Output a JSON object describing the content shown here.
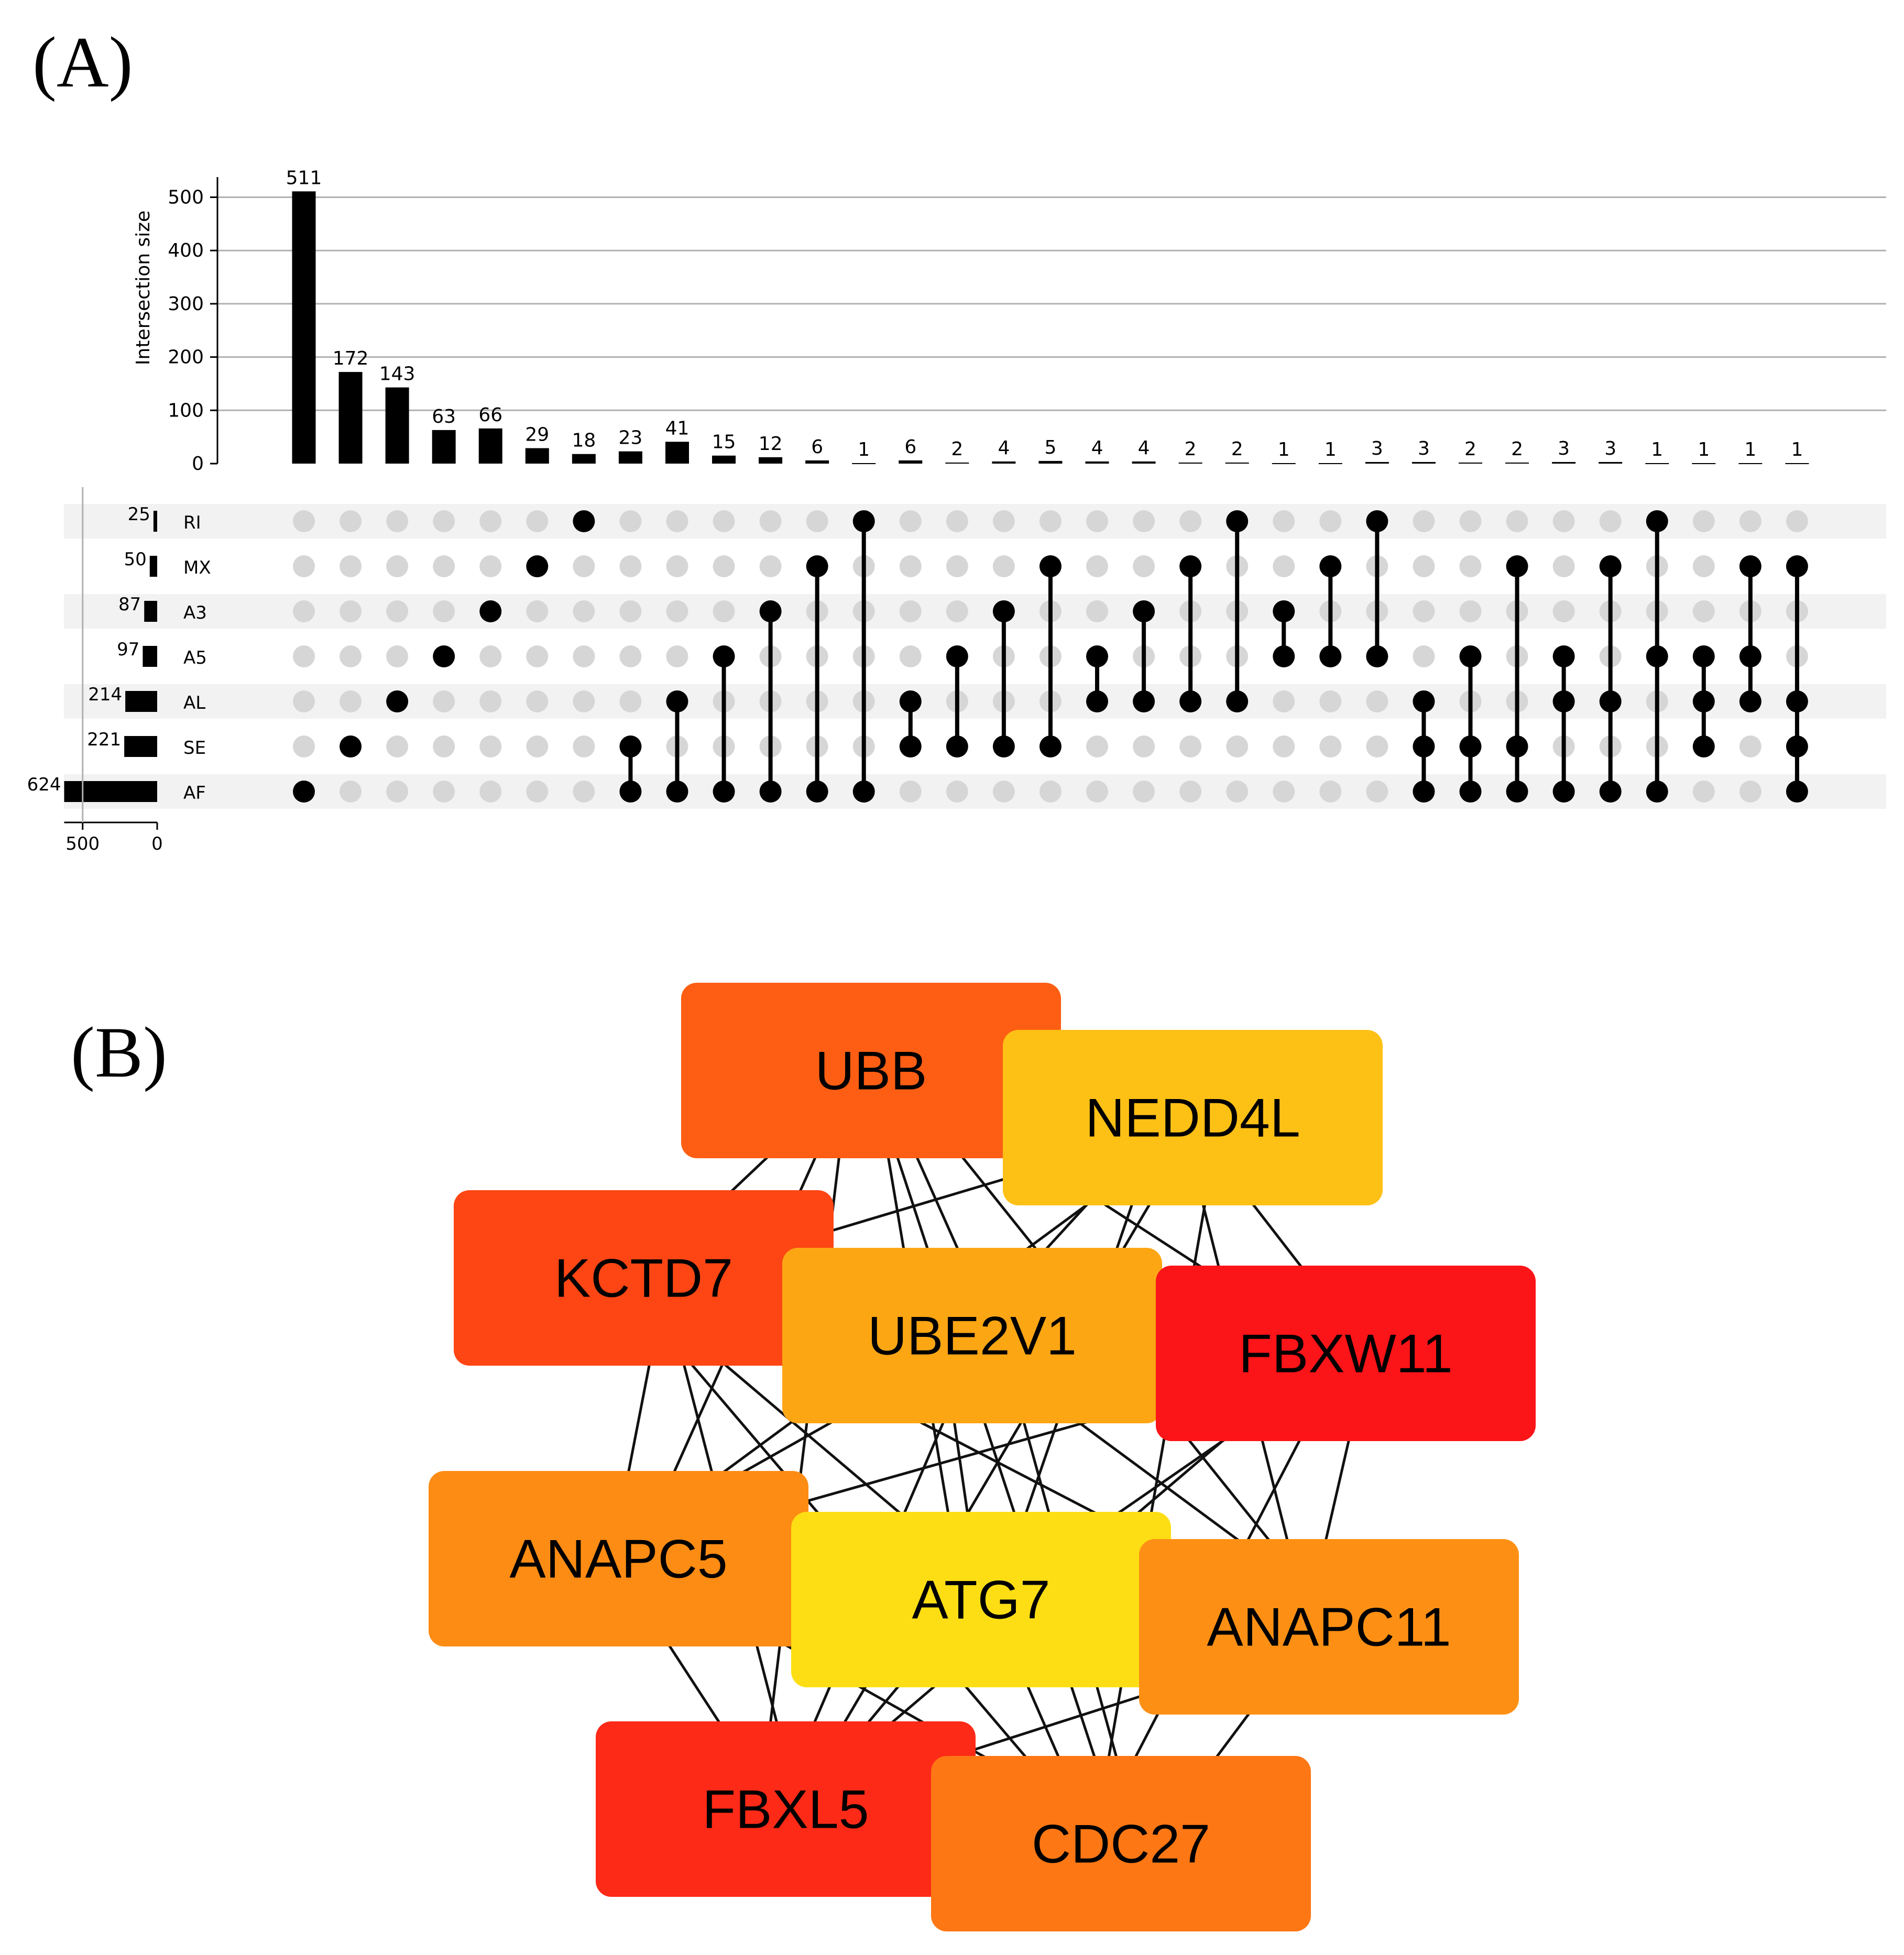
{
  "panels": {
    "a_label": "(A)",
    "b_label": "(B)"
  },
  "chart_data": [
    {
      "type": "upset",
      "ylabel": "Intersection size",
      "yticks": [
        0,
        100,
        200,
        300,
        400,
        500
      ],
      "ylim": [
        0,
        530
      ],
      "set_size_ticks": [
        500,
        0
      ],
      "set_size_lim": [
        624,
        0
      ],
      "sets": [
        {
          "name": "RI",
          "size": 25
        },
        {
          "name": "MX",
          "size": 50
        },
        {
          "name": "A3",
          "size": 87
        },
        {
          "name": "A5",
          "size": 97
        },
        {
          "name": "AL",
          "size": 214
        },
        {
          "name": "SE",
          "size": 221
        },
        {
          "name": "AF",
          "size": 624
        }
      ],
      "intersections": [
        {
          "sets": [
            "AF"
          ],
          "size": 511
        },
        {
          "sets": [
            "SE"
          ],
          "size": 172
        },
        {
          "sets": [
            "AL"
          ],
          "size": 143
        },
        {
          "sets": [
            "A5"
          ],
          "size": 63
        },
        {
          "sets": [
            "A3"
          ],
          "size": 66
        },
        {
          "sets": [
            "MX"
          ],
          "size": 29
        },
        {
          "sets": [
            "RI"
          ],
          "size": 18
        },
        {
          "sets": [
            "SE",
            "AF"
          ],
          "size": 23
        },
        {
          "sets": [
            "AL",
            "AF"
          ],
          "size": 41
        },
        {
          "sets": [
            "A5",
            "AF"
          ],
          "size": 15
        },
        {
          "sets": [
            "A3",
            "AF"
          ],
          "size": 12
        },
        {
          "sets": [
            "MX",
            "AF"
          ],
          "size": 6
        },
        {
          "sets": [
            "RI",
            "AF"
          ],
          "size": 1
        },
        {
          "sets": [
            "AL",
            "SE"
          ],
          "size": 6
        },
        {
          "sets": [
            "A5",
            "SE"
          ],
          "size": 2
        },
        {
          "sets": [
            "A3",
            "SE"
          ],
          "size": 4
        },
        {
          "sets": [
            "MX",
            "SE"
          ],
          "size": 5
        },
        {
          "sets": [
            "A5",
            "AL"
          ],
          "size": 4
        },
        {
          "sets": [
            "A3",
            "AL"
          ],
          "size": 4
        },
        {
          "sets": [
            "MX",
            "AL"
          ],
          "size": 2
        },
        {
          "sets": [
            "RI",
            "AL"
          ],
          "size": 2
        },
        {
          "sets": [
            "A3",
            "A5"
          ],
          "size": 1
        },
        {
          "sets": [
            "MX",
            "A5"
          ],
          "size": 1
        },
        {
          "sets": [
            "RI",
            "A5"
          ],
          "size": 3
        },
        {
          "sets": [
            "AL",
            "SE",
            "AF"
          ],
          "size": 3
        },
        {
          "sets": [
            "A5",
            "SE",
            "AF"
          ],
          "size": 2
        },
        {
          "sets": [
            "MX",
            "SE",
            "AF"
          ],
          "size": 2
        },
        {
          "sets": [
            "A5",
            "AL",
            "AF"
          ],
          "size": 3
        },
        {
          "sets": [
            "MX",
            "AL",
            "AF"
          ],
          "size": 3
        },
        {
          "sets": [
            "RI",
            "A5",
            "AF"
          ],
          "size": 1
        },
        {
          "sets": [
            "A5",
            "AL",
            "SE"
          ],
          "size": 1
        },
        {
          "sets": [
            "MX",
            "A5",
            "AL"
          ],
          "size": 1
        },
        {
          "sets": [
            "MX",
            "AL",
            "SE",
            "AF"
          ],
          "size": 1
        }
      ]
    },
    {
      "type": "network",
      "nodes": [
        {
          "id": "UBB",
          "label": "UBB",
          "color": "#FD5E13"
        },
        {
          "id": "NEDD4L",
          "label": "NEDD4L",
          "color": "#FDC015"
        },
        {
          "id": "KCTD7",
          "label": "KCTD7",
          "color": "#FD4614"
        },
        {
          "id": "UBE2V1",
          "label": "UBE2V1",
          "color": "#FDA614"
        },
        {
          "id": "FBXW11",
          "label": "FBXW11",
          "color": "#FB1418"
        },
        {
          "id": "ANAPC5",
          "label": "ANAPC5",
          "color": "#FD8C14"
        },
        {
          "id": "ATG7",
          "label": "ATG7",
          "color": "#FDDE14"
        },
        {
          "id": "ANAPC11",
          "label": "ANAPC11",
          "color": "#FD9014"
        },
        {
          "id": "FBXL5",
          "label": "FBXL5",
          "color": "#FD2A17"
        },
        {
          "id": "CDC27",
          "label": "CDC27",
          "color": "#FD7714"
        }
      ],
      "edges": [
        [
          "UBB",
          "NEDD4L"
        ],
        [
          "UBB",
          "KCTD7"
        ],
        [
          "UBB",
          "UBE2V1"
        ],
        [
          "UBB",
          "FBXW11"
        ],
        [
          "UBB",
          "ANAPC5"
        ],
        [
          "UBB",
          "ATG7"
        ],
        [
          "UBB",
          "ANAPC11"
        ],
        [
          "UBB",
          "FBXL5"
        ],
        [
          "UBB",
          "CDC27"
        ],
        [
          "NEDD4L",
          "KCTD7"
        ],
        [
          "NEDD4L",
          "UBE2V1"
        ],
        [
          "NEDD4L",
          "FBXW11"
        ],
        [
          "NEDD4L",
          "ANAPC5"
        ],
        [
          "NEDD4L",
          "ATG7"
        ],
        [
          "NEDD4L",
          "ANAPC11"
        ],
        [
          "NEDD4L",
          "FBXL5"
        ],
        [
          "NEDD4L",
          "CDC27"
        ],
        [
          "KCTD7",
          "UBE2V1"
        ],
        [
          "KCTD7",
          "FBXW11"
        ],
        [
          "KCTD7",
          "ANAPC5"
        ],
        [
          "KCTD7",
          "ATG7"
        ],
        [
          "KCTD7",
          "ANAPC11"
        ],
        [
          "KCTD7",
          "FBXL5"
        ],
        [
          "KCTD7",
          "CDC27"
        ],
        [
          "UBE2V1",
          "FBXW11"
        ],
        [
          "UBE2V1",
          "ANAPC5"
        ],
        [
          "UBE2V1",
          "ATG7"
        ],
        [
          "UBE2V1",
          "ANAPC11"
        ],
        [
          "UBE2V1",
          "FBXL5"
        ],
        [
          "UBE2V1",
          "CDC27"
        ],
        [
          "FBXW11",
          "ANAPC5"
        ],
        [
          "FBXW11",
          "ATG7"
        ],
        [
          "FBXW11",
          "ANAPC11"
        ],
        [
          "FBXW11",
          "FBXL5"
        ],
        [
          "FBXW11",
          "CDC27"
        ],
        [
          "ANAPC5",
          "ATG7"
        ],
        [
          "ANAPC5",
          "ANAPC11"
        ],
        [
          "ANAPC5",
          "FBXL5"
        ],
        [
          "ANAPC5",
          "CDC27"
        ],
        [
          "ATG7",
          "ANAPC11"
        ],
        [
          "ATG7",
          "FBXL5"
        ],
        [
          "ATG7",
          "CDC27"
        ],
        [
          "ANAPC11",
          "FBXL5"
        ],
        [
          "ANAPC11",
          "CDC27"
        ],
        [
          "FBXL5",
          "CDC27"
        ]
      ]
    }
  ]
}
